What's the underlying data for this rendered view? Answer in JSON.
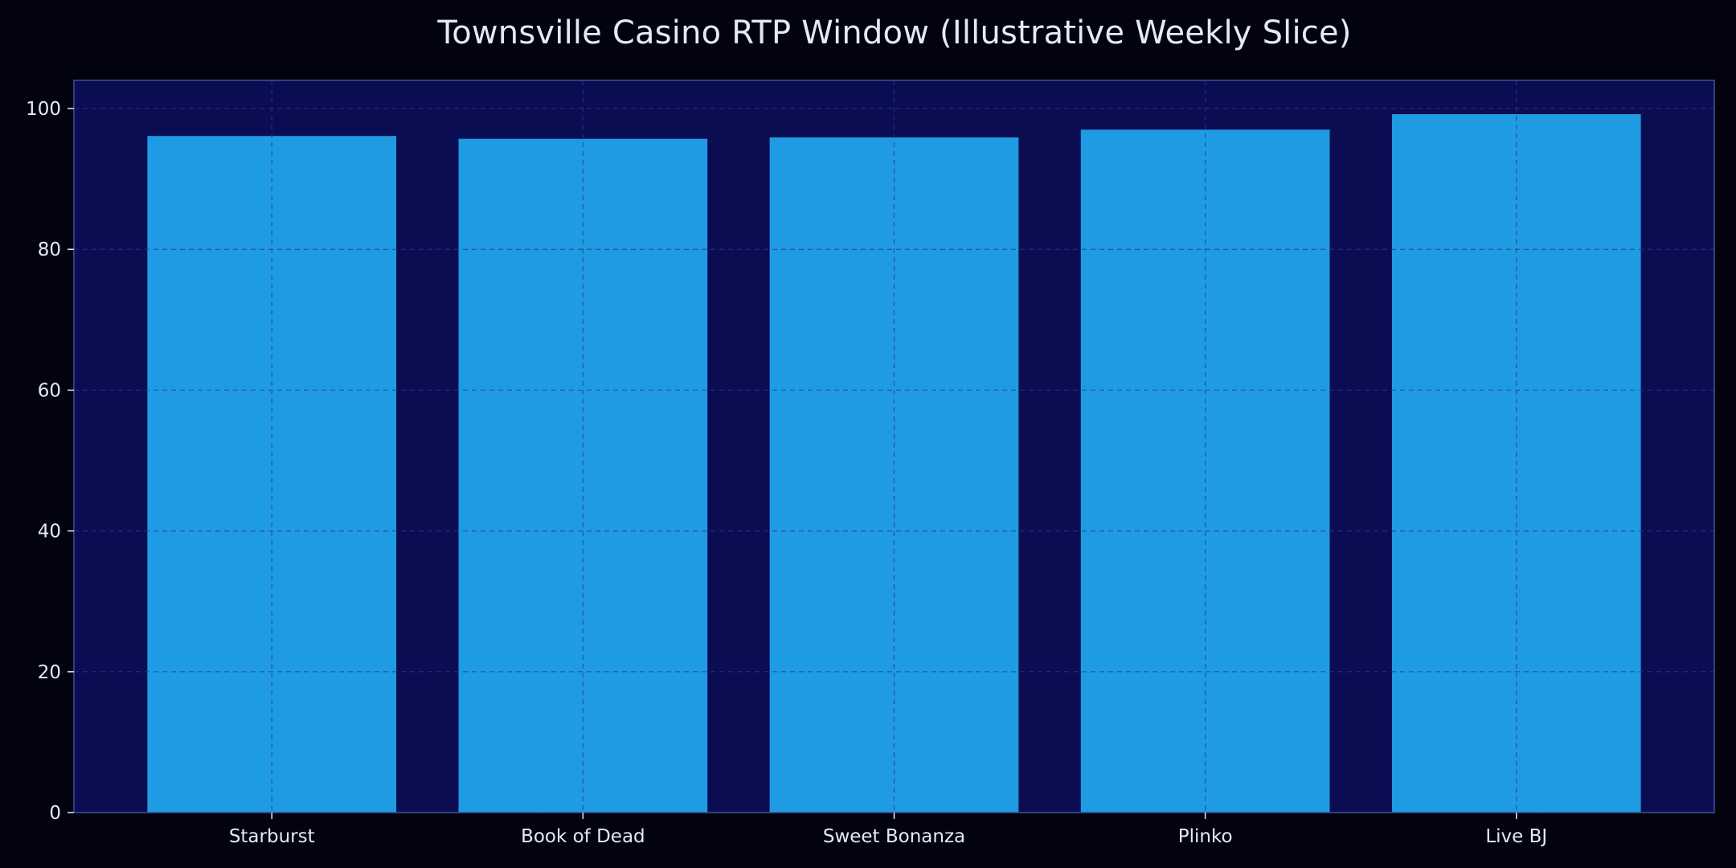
{
  "chart_data": {
    "type": "bar",
    "title": "Townsville Casino RTP Window (Illustrative Weekly Slice)",
    "xlabel": "",
    "ylabel": "",
    "categories": [
      "Starburst",
      "Book of Dead",
      "Sweet Bonanza",
      "Plinko",
      "Live BJ"
    ],
    "values": [
      96.1,
      95.7,
      95.9,
      97.0,
      99.2
    ],
    "ylim": [
      0,
      104
    ],
    "yticks": [
      "0",
      "20",
      "40",
      "60",
      "80",
      "100"
    ],
    "grid": true,
    "legend": "none",
    "colors": {
      "figure_background": "#03030f",
      "plot_background": "#0a0d52",
      "bar": "#1f9be4",
      "grid": "#2a3a8a",
      "axis": "#3e5294",
      "text": "#e6e9f5"
    }
  }
}
